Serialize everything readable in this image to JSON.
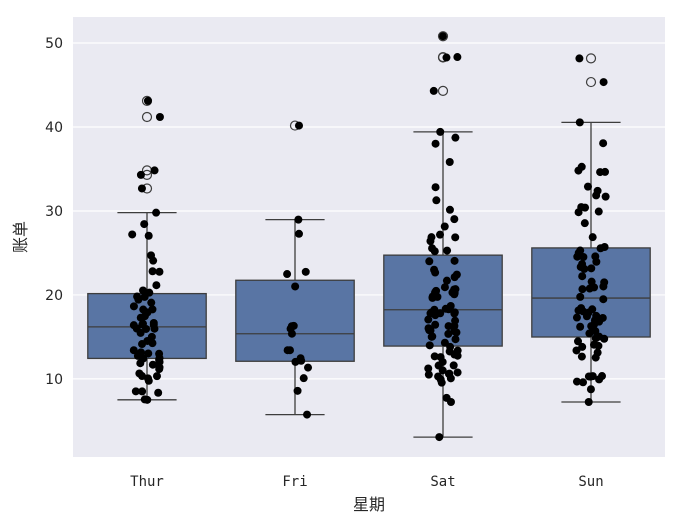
{
  "chart_data": {
    "type": "box",
    "overlay": "strip",
    "title": "",
    "xlabel": "星期",
    "ylabel": "账单",
    "categories": [
      "Thur",
      "Fri",
      "Sat",
      "Sun"
    ],
    "ylim": [
      0.7,
      53.1
    ],
    "yticks": [
      10,
      20,
      30,
      40,
      50
    ],
    "grid": true,
    "colors": {
      "box": "#5975a4",
      "line": "#3d3d3d",
      "points": "#000000",
      "background": "#eaeaf2",
      "grid": "#ffffff"
    },
    "boxes": [
      {
        "category": "Thur",
        "whisker_low": 7.51,
        "q1": 12.44,
        "median": 16.2,
        "q3": 20.16,
        "whisker_high": 29.8,
        "outliers": [
          32.68,
          34.3,
          34.83,
          41.19,
          43.11
        ]
      },
      {
        "category": "Fri",
        "whisker_low": 5.75,
        "q1": 12.1,
        "median": 15.38,
        "q3": 21.75,
        "whisker_high": 28.97,
        "outliers": [
          40.17
        ]
      },
      {
        "category": "Sat",
        "whisker_low": 3.07,
        "q1": 13.91,
        "median": 18.24,
        "q3": 24.74,
        "whisker_high": 39.42,
        "outliers": [
          44.3,
          48.27,
          48.33,
          50.81
        ]
      },
      {
        "category": "Sun",
        "whisker_low": 7.25,
        "q1": 14.99,
        "median": 19.63,
        "q3": 25.6,
        "whisker_high": 40.55,
        "outliers": [
          45.35,
          48.17
        ]
      }
    ],
    "points": {
      "Thur": [
        27.2,
        22.76,
        17.29,
        19.44,
        16.66,
        10.07,
        32.68,
        15.98,
        34.83,
        13.03,
        18.28,
        24.71,
        21.16,
        10.65,
        12.43,
        24.08,
        11.69,
        13.42,
        14.26,
        15.95,
        12.48,
        29.8,
        8.52,
        14.52,
        11.38,
        22.82,
        19.08,
        20.27,
        11.17,
        12.26,
        18.26,
        8.51,
        10.33,
        14.15,
        16.0,
        13.16,
        17.47,
        34.3,
        41.19,
        27.05,
        16.43,
        8.35,
        18.64,
        11.87,
        9.78,
        7.51,
        19.77,
        12.74,
        13.0,
        16.4,
        20.53,
        16.47,
        15.01,
        12.02,
        17.92,
        19.81,
        28.44,
        15.48,
        16.58,
        7.56,
        10.34,
        43.11
      ],
      "Fri": [
        28.97,
        22.49,
        5.75,
        16.32,
        22.75,
        40.17,
        27.28,
        12.03,
        21.01,
        12.46,
        11.35,
        15.38,
        12.16,
        13.42,
        8.58,
        15.98,
        13.42,
        16.27,
        10.09
      ],
      "Sat": [
        20.65,
        17.92,
        20.29,
        15.77,
        39.42,
        19.82,
        17.81,
        13.37,
        12.69,
        21.7,
        19.65,
        9.55,
        18.35,
        15.06,
        20.69,
        17.78,
        24.06,
        16.31,
        16.93,
        18.69,
        31.27,
        16.04,
        38.01,
        26.41,
        11.24,
        48.27,
        20.29,
        13.81,
        11.02,
        18.29,
        17.59,
        20.08,
        16.45,
        3.07,
        20.23,
        15.01,
        12.02,
        17.07,
        26.86,
        25.28,
        14.73,
        10.51,
        17.92,
        44.3,
        22.42,
        20.92,
        15.36,
        20.49,
        25.21,
        18.24,
        14.31,
        14.0,
        7.25,
        10.59,
        10.63,
        50.81,
        15.81,
        26.88,
        38.73,
        25.56,
        16.29,
        22.12,
        24.01,
        15.69,
        11.61,
        10.77,
        15.53,
        10.07,
        12.6,
        32.83,
        35.83,
        29.03,
        27.18,
        22.67,
        17.82,
        12.9,
        28.15,
        11.59,
        7.74,
        30.14,
        10.29,
        13.27,
        9.94,
        23.0,
        19.77,
        48.33,
        12.76
      ],
      "Sun": [
        16.99,
        10.34,
        21.01,
        23.68,
        24.59,
        25.29,
        8.77,
        26.88,
        15.04,
        14.78,
        10.27,
        35.26,
        15.42,
        18.43,
        14.83,
        21.58,
        10.33,
        16.29,
        16.97,
        17.46,
        13.94,
        9.68,
        30.4,
        18.29,
        22.23,
        32.4,
        28.55,
        18.04,
        12.54,
        10.29,
        34.81,
        9.94,
        25.56,
        19.49,
        38.07,
        23.95,
        25.71,
        17.31,
        29.93,
        14.07,
        13.13,
        17.26,
        24.55,
        19.77,
        29.85,
        48.17,
        25.0,
        13.39,
        16.49,
        21.5,
        12.66,
        16.21,
        13.81,
        17.51,
        24.52,
        20.76,
        31.71,
        7.25,
        31.85,
        16.82,
        32.9,
        17.89,
        14.48,
        9.6,
        34.63,
        34.65,
        23.33,
        45.35,
        23.17,
        40.55,
        20.69,
        20.9,
        30.46,
        18.15,
        23.1,
        15.69
      ]
    }
  }
}
